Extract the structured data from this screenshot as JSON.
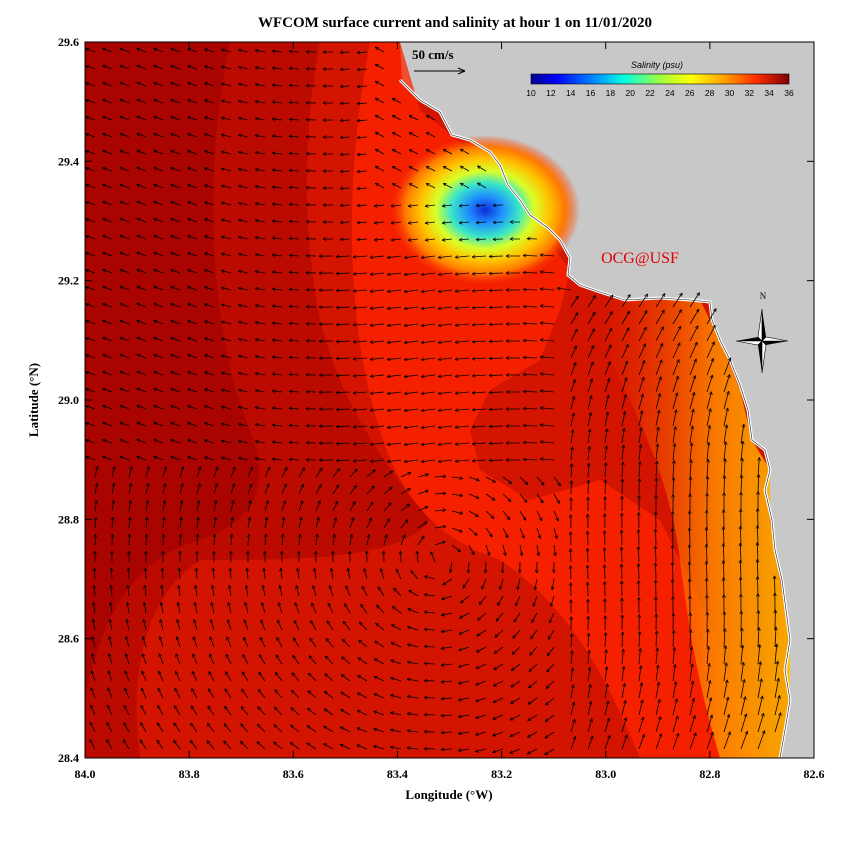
{
  "title": "WFCOM surface current and salinity at hour 1 on 11/01/2020",
  "x_axis": {
    "label": "Longitude (°W)",
    "ticks": [
      "84.0",
      "83.8",
      "83.6",
      "83.4",
      "83.2",
      "83.0",
      "82.8",
      "82.6"
    ],
    "range": [
      84.0,
      82.6
    ]
  },
  "y_axis": {
    "label": "Latitude (°N)",
    "ticks": [
      "29.6",
      "29.4",
      "29.2",
      "29.0",
      "28.8",
      "28.6",
      "28.4"
    ],
    "range": [
      28.4,
      29.6
    ]
  },
  "colorbar": {
    "label": "Salinity (psu)",
    "ticks": [
      "10",
      "12",
      "14",
      "16",
      "18",
      "20",
      "22",
      "24",
      "26",
      "28",
      "30",
      "32",
      "34",
      "36"
    ],
    "range": [
      10,
      36
    ]
  },
  "scale_vector": {
    "label": "50 cm/s",
    "value_cm_s": 50
  },
  "watermark": "OCG@USF",
  "compass": {
    "label": "N"
  },
  "colors": {
    "land": "#c8c8c8",
    "coast": "#ffffff",
    "sea_high": "#b00000",
    "sea_mid": "#ff2a00",
    "plume_low": "#1e90ff"
  }
}
